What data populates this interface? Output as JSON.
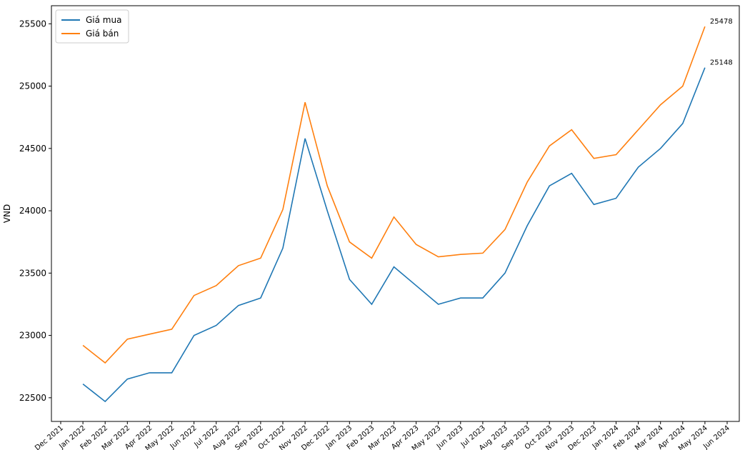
{
  "chart_data": {
    "type": "line",
    "y_label": "VND",
    "x": [
      "Jan 2022",
      "Feb 2022",
      "Mar 2022",
      "Apr 2022",
      "May 2022",
      "Jun 2022",
      "Jul 2022",
      "Aug 2022",
      "Sep 2022",
      "Oct 2022",
      "Nov 2022",
      "Dec 2022",
      "Jan 2023",
      "Feb 2023",
      "Mar 2023",
      "Apr 2023",
      "May 2023",
      "Jun 2023",
      "Jul 2023",
      "Aug 2023",
      "Sep 2023",
      "Oct 2023",
      "Nov 2023",
      "Dec 2023",
      "Jan 2024",
      "Feb 2024",
      "Mar 2024",
      "Apr 2024",
      "May 2024"
    ],
    "series": [
      {
        "name": "Giá mua",
        "color": "#1f77b4",
        "values": [
          22610,
          22470,
          22650,
          22700,
          22700,
          23000,
          23080,
          23240,
          23300,
          23700,
          24580,
          24000,
          23450,
          23250,
          23550,
          23400,
          23250,
          23300,
          23300,
          23500,
          23880,
          24200,
          24300,
          24050,
          24100,
          24350,
          24500,
          24700,
          25148
        ]
      },
      {
        "name": "Giá bán",
        "color": "#ff7f0e",
        "values": [
          22920,
          22780,
          22970,
          23010,
          23050,
          23320,
          23400,
          23560,
          23620,
          24010,
          24870,
          24200,
          23750,
          23620,
          23950,
          23730,
          23630,
          23650,
          23660,
          23850,
          24230,
          24520,
          24650,
          24420,
          24450,
          24650,
          24850,
          25000,
          25478
        ]
      }
    ],
    "xticks": [
      "Dec 2021",
      "Jan 2022",
      "Feb 2022",
      "Mar 2022",
      "Apr 2022",
      "May 2022",
      "Jun 2022",
      "Jul 2022",
      "Aug 2022",
      "Sep 2022",
      "Oct 2022",
      "Nov 2022",
      "Dec 2022",
      "Jan 2023",
      "Feb 2023",
      "Mar 2023",
      "Apr 2023",
      "May 2023",
      "Jun 2023",
      "Jul 2023",
      "Aug 2023",
      "Sep 2023",
      "Oct 2023",
      "Nov 2023",
      "Dec 2023",
      "Jan 2024",
      "Feb 2024",
      "Mar 2024",
      "Apr 2024",
      "May 2024",
      "Jun 2024"
    ],
    "ylim": [
      22310,
      25645
    ],
    "yticks": [
      22500,
      23000,
      23500,
      24000,
      24500,
      25000,
      25500
    ],
    "legend": "upper left"
  }
}
